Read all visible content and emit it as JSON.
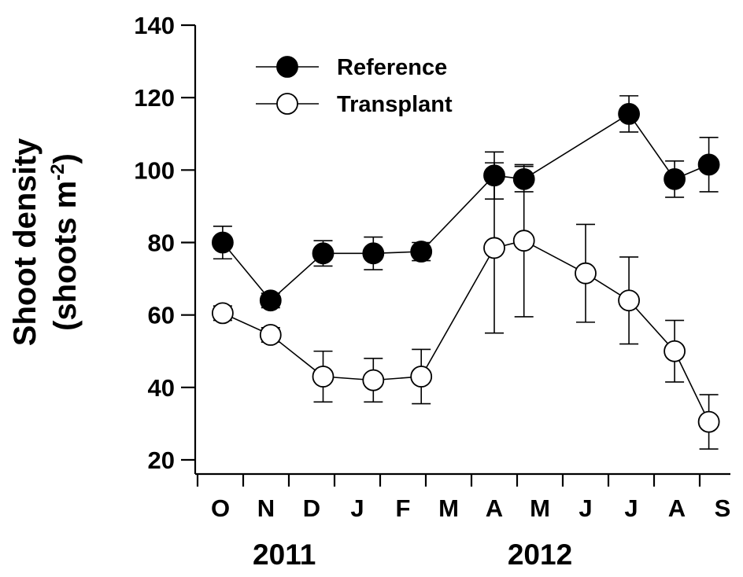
{
  "chart_data": {
    "type": "line",
    "ylabel": "Shoot density",
    "ylabel_units_base": "(shoots m",
    "ylabel_units_exp": "-2",
    "ylabel_units_close": ")",
    "ylim": [
      20,
      140
    ],
    "yticks": [
      20,
      40,
      60,
      80,
      100,
      120,
      140
    ],
    "months": [
      "O",
      "N",
      "D",
      "J",
      "F",
      "M",
      "A",
      "M",
      "J",
      "J",
      "A",
      "S"
    ],
    "years": [
      {
        "label": "2011",
        "center_month_index": 1.4
      },
      {
        "label": "2012",
        "center_month_index": 7.0
      }
    ],
    "legend_position": "top-left",
    "grid": false,
    "series": [
      {
        "name": "Reference",
        "marker": "filled-circle",
        "color": "#000000",
        "points": [
          {
            "x": 0.05,
            "y": 80,
            "err": 4.5
          },
          {
            "x": 1.1,
            "y": 64,
            "err": 2
          },
          {
            "x": 2.25,
            "y": 77,
            "err": 3.5
          },
          {
            "x": 3.35,
            "y": 77,
            "err": 4.5
          },
          {
            "x": 4.4,
            "y": 77.5,
            "err": 2.5
          },
          {
            "x": 6.0,
            "y": 98.5,
            "err": 6.5
          },
          {
            "x": 6.65,
            "y": 97.5,
            "err": 3.5
          },
          {
            "x": 8.95,
            "y": 115.5,
            "err": 5
          },
          {
            "x": 9.95,
            "y": 97.5,
            "err": 5
          },
          {
            "x": 10.7,
            "y": 101.5,
            "err": 7.5
          }
        ]
      },
      {
        "name": "Transplant",
        "marker": "open-circle",
        "color": "#000000",
        "points": [
          {
            "x": 0.05,
            "y": 60.5,
            "err": 2
          },
          {
            "x": 1.1,
            "y": 54.5,
            "err": 2
          },
          {
            "x": 2.25,
            "y": 43,
            "err": 7
          },
          {
            "x": 3.35,
            "y": 42,
            "err": 6
          },
          {
            "x": 4.4,
            "y": 43,
            "err": 7.5
          },
          {
            "x": 6.0,
            "y": 78.5,
            "err": 23.5
          },
          {
            "x": 6.65,
            "y": 80.5,
            "err": 21
          },
          {
            "x": 8.0,
            "y": 71.5,
            "err": 13.5
          },
          {
            "x": 8.95,
            "y": 64,
            "err": 12
          },
          {
            "x": 9.95,
            "y": 50,
            "err": 8.5
          },
          {
            "x": 10.7,
            "y": 30.5,
            "err": 7.5
          }
        ]
      }
    ]
  }
}
